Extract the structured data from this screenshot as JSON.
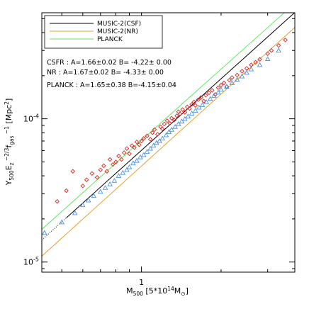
{
  "chart_data": {
    "type": "scatter",
    "x_scale": "log",
    "y_scale": "log",
    "xlim": [
      0.42,
      3.8
    ],
    "ylim": [
      8.5e-06,
      0.00055
    ],
    "xlabel": "M500 [5*10^14 M⊙]",
    "ylabel": "Y500 Ez^-2/3 fgas^-1 [Mpc²]",
    "x_ticks": [
      {
        "value": 1,
        "label": "1"
      }
    ],
    "y_ticks": [
      {
        "value": 1e-05,
        "label": "10^-5"
      },
      {
        "value": 0.0001,
        "label": "10^-4"
      }
    ],
    "legend": {
      "placement": "top-left",
      "entries": [
        {
          "label": "MUSIC-2(CSF)",
          "color": "#000000"
        },
        {
          "label": "MUSIC-2(NR)",
          "color": "#e8a030"
        },
        {
          "label": "PLANCK",
          "color": "#5ee85e"
        }
      ]
    },
    "annotations": [
      {
        "line": "CSFR : A=1.66±0.02 B= -4.22±  0.00"
      },
      {
        "line": "NR : A=1.67±0.02 B= -4.33±  0.00"
      },
      {
        "line": "PLANCK : A=1.65±0.38 B=-4.15±0.04"
      }
    ],
    "fit_lines": [
      {
        "name": "MUSIC-2(CSF)",
        "A": 1.66,
        "B": -4.22,
        "color": "#000000",
        "dotted_below_x": 0.52
      },
      {
        "name": "MUSIC-2(NR)",
        "A": 1.67,
        "B": -4.33,
        "color": "#e8a030"
      },
      {
        "name": "PLANCK",
        "A": 1.65,
        "B": -4.15,
        "color": "#5ee85e"
      }
    ],
    "series": [
      {
        "name": "MUSIC-2(CSF)",
        "marker": "diamond",
        "color": "#e0201e",
        "points": [
          [
            0.48,
            2.65e-05
          ],
          [
            0.52,
            3.15e-05
          ],
          [
            0.55,
            4.3e-05
          ],
          [
            0.6,
            3.4e-05
          ],
          [
            0.62,
            3.75e-05
          ],
          [
            0.65,
            4.15e-05
          ],
          [
            0.68,
            3.9e-05
          ],
          [
            0.7,
            4.4e-05
          ],
          [
            0.72,
            4.7e-05
          ],
          [
            0.74,
            4.3e-05
          ],
          [
            0.76,
            5.2e-05
          ],
          [
            0.78,
            4.8e-05
          ],
          [
            0.8,
            5e-05
          ],
          [
            0.82,
            5.5e-05
          ],
          [
            0.84,
            5.2e-05
          ],
          [
            0.86,
            5.8e-05
          ],
          [
            0.88,
            6.2e-05
          ],
          [
            0.9,
            5.7e-05
          ],
          [
            0.92,
            6.5e-05
          ],
          [
            0.94,
            6.3e-05
          ],
          [
            0.96,
            6.9e-05
          ],
          [
            0.98,
            6.6e-05
          ],
          [
            1.0,
            7e-05
          ],
          [
            1.02,
            7.3e-05
          ],
          [
            1.05,
            7.6e-05
          ],
          [
            1.08,
            7.2e-05
          ],
          [
            1.1,
            8e-05
          ],
          [
            1.12,
            8.4e-05
          ],
          [
            1.15,
            7.8e-05
          ],
          [
            1.18,
            8.8e-05
          ],
          [
            1.2,
            8.5e-05
          ],
          [
            1.22,
            9.2e-05
          ],
          [
            1.25,
            9.7e-05
          ],
          [
            1.28,
            9.3e-05
          ],
          [
            1.3,
            0.000101
          ],
          [
            1.33,
            9.8e-05
          ],
          [
            1.36,
            0.000105
          ],
          [
            1.38,
            0.000112
          ],
          [
            1.4,
            0.000108
          ],
          [
            1.43,
            0.000116
          ],
          [
            1.46,
            0.000111
          ],
          [
            1.49,
            0.000121
          ],
          [
            1.52,
            0.000118
          ],
          [
            1.55,
            0.000126
          ],
          [
            1.58,
            0.000131
          ],
          [
            1.6,
            0.000124
          ],
          [
            1.64,
            0.000136
          ],
          [
            1.68,
            0.000141
          ],
          [
            1.72,
            0.000133
          ],
          [
            1.75,
            0.000146
          ],
          [
            1.8,
            0.000152
          ],
          [
            1.85,
            0.000158
          ],
          [
            1.9,
            0.000148
          ],
          [
            1.95,
            0.000165
          ],
          [
            2.0,
            0.000172
          ],
          [
            2.05,
            0.000178
          ],
          [
            2.1,
            0.000168
          ],
          [
            2.15,
            0.000186
          ],
          [
            2.2,
            0.000194
          ],
          [
            2.3,
            0.000202
          ],
          [
            2.4,
            0.000215
          ],
          [
            2.5,
            0.000225
          ],
          [
            2.6,
            0.000238
          ],
          [
            2.7,
            0.000248
          ],
          [
            2.8,
            0.00026
          ],
          [
            3.0,
            0.000285
          ],
          [
            3.1,
            0.0003
          ],
          [
            3.3,
            0.000325
          ],
          [
            3.5,
            0.000355
          ]
        ]
      },
      {
        "name": "MUSIC-2(NR)",
        "marker": "triangle",
        "color": "#4a90e0",
        "points": [
          [
            0.43,
            1.6e-05
          ],
          [
            0.5,
            1.9e-05
          ],
          [
            0.56,
            2.2e-05
          ],
          [
            0.6,
            2.5e-05
          ],
          [
            0.63,
            2.7e-05
          ],
          [
            0.66,
            2.9e-05
          ],
          [
            0.7,
            3.1e-05
          ],
          [
            0.73,
            3.3e-05
          ],
          [
            0.76,
            3.5e-05
          ],
          [
            0.79,
            3.7e-05
          ],
          [
            0.82,
            4e-05
          ],
          [
            0.85,
            4.2e-05
          ],
          [
            0.88,
            4.4e-05
          ],
          [
            0.9,
            4.6e-05
          ],
          [
            0.93,
            4.9e-05
          ],
          [
            0.96,
            5.1e-05
          ],
          [
            0.99,
            5.4e-05
          ],
          [
            1.02,
            5.6e-05
          ],
          [
            1.05,
            5.9e-05
          ],
          [
            1.08,
            6.2e-05
          ],
          [
            1.11,
            6.5e-05
          ],
          [
            1.14,
            6.8e-05
          ],
          [
            1.17,
            7e-05
          ],
          [
            1.2,
            7.3e-05
          ],
          [
            1.24,
            7.7e-05
          ],
          [
            1.27,
            8.1e-05
          ],
          [
            1.3,
            8.4e-05
          ],
          [
            1.34,
            8.8e-05
          ],
          [
            1.38,
            9.2e-05
          ],
          [
            1.42,
            9.6e-05
          ],
          [
            1.46,
            0.0001
          ],
          [
            1.5,
            0.000104
          ],
          [
            1.55,
            0.000109
          ],
          [
            1.6,
            0.000114
          ],
          [
            1.65,
            0.00012
          ],
          [
            1.7,
            0.000125
          ],
          [
            1.76,
            0.000131
          ],
          [
            1.82,
            0.000138
          ],
          [
            1.88,
            0.000145
          ],
          [
            1.95,
            0.000153
          ],
          [
            2.0,
            0.00016
          ],
          [
            2.1,
            0.000168
          ],
          [
            2.2,
            0.000178
          ],
          [
            2.3,
            0.000188
          ],
          [
            2.4,
            0.000198
          ],
          [
            2.5,
            0.00021
          ],
          [
            2.6,
            0.000222
          ],
          [
            2.8,
            0.000238
          ],
          [
            3.0,
            0.000262
          ],
          [
            3.3,
            0.0003
          ]
        ]
      }
    ],
    "colors": {
      "frame": "#000000",
      "background": "#ffffff"
    }
  }
}
